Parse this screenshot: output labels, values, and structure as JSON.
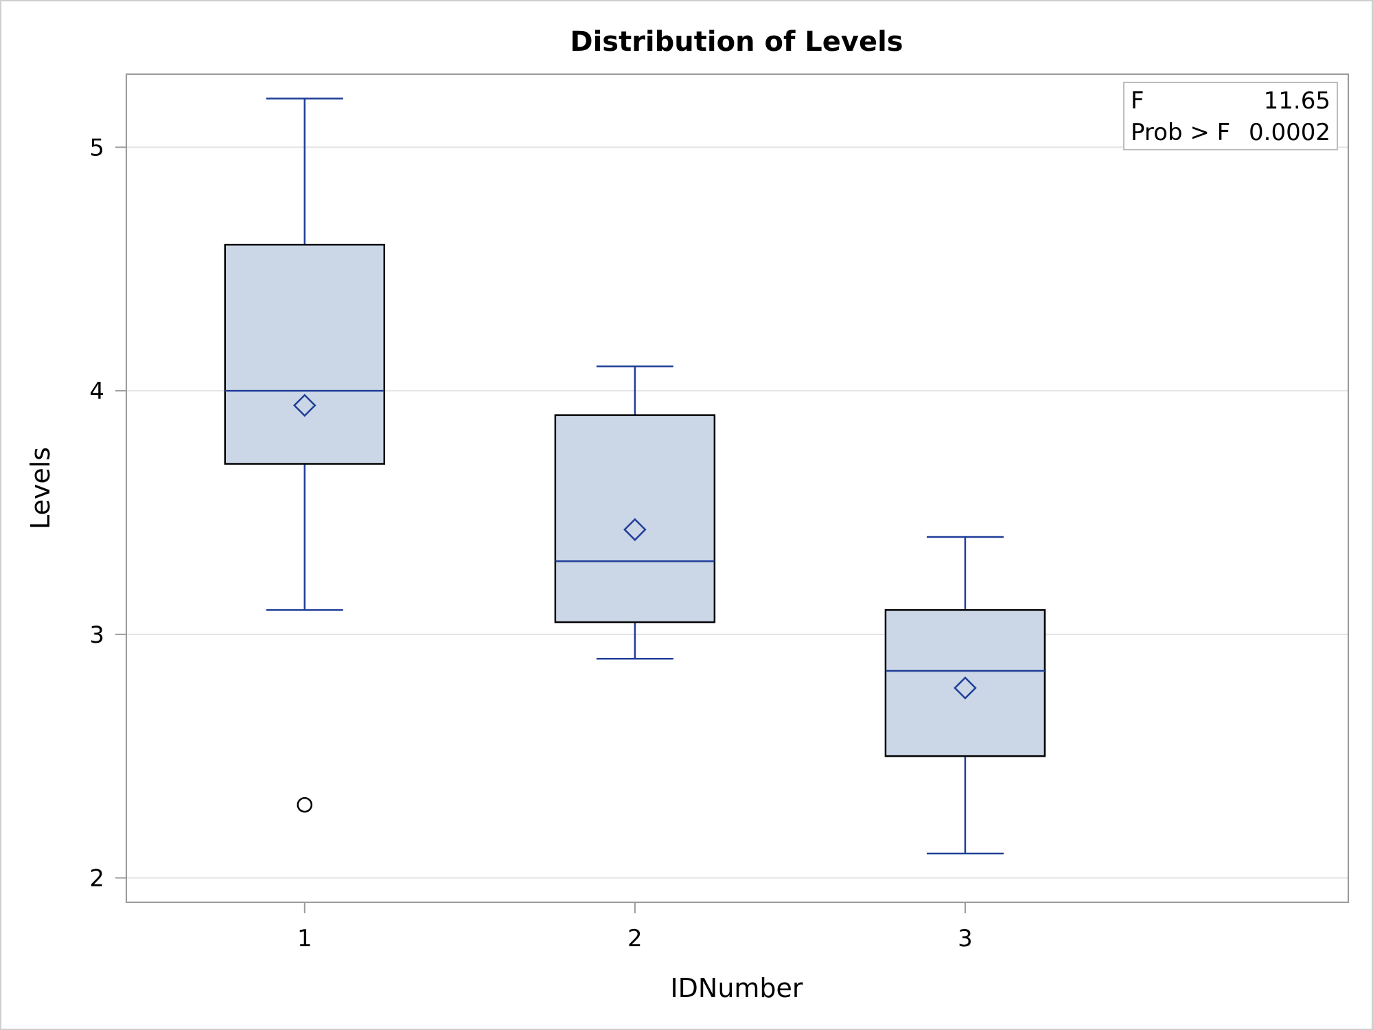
{
  "chart_data": {
    "type": "box",
    "title": "Distribution of Levels",
    "xlabel": "IDNumber",
    "ylabel": "Levels",
    "ylim": [
      1.9,
      5.3
    ],
    "yticks": [
      "2",
      "3",
      "4",
      "5"
    ],
    "grid": "horizontal",
    "categories": [
      "1",
      "2",
      "3"
    ],
    "boxes": [
      {
        "category": "1",
        "whisker_low": 3.1,
        "q1": 3.7,
        "median": 4.0,
        "q3": 4.6,
        "whisker_high": 5.2,
        "mean": 3.94,
        "outliers": [
          2.3
        ]
      },
      {
        "category": "2",
        "whisker_low": 2.9,
        "q1": 3.05,
        "median": 3.3,
        "q3": 3.9,
        "whisker_high": 4.1,
        "mean": 3.43,
        "outliers": []
      },
      {
        "category": "3",
        "whisker_low": 2.1,
        "q1": 2.5,
        "median": 2.85,
        "q3": 3.1,
        "whisker_high": 3.4,
        "mean": 2.78,
        "outliers": []
      }
    ],
    "inset": {
      "placement": "top-right",
      "rows": [
        {
          "label": "F",
          "value": "11.65"
        },
        {
          "label": "Prob > F",
          "value": "0.0002"
        }
      ]
    },
    "colors": {
      "box_fill": "#cbd6e6",
      "box_stroke": "#000000",
      "whisker": "#1f3d99",
      "median": "#1f3d99",
      "mean_marker": "#1f3d99",
      "outlier": "#000000",
      "grid": "#e3e3e3",
      "frame": "#9a9a9a"
    }
  }
}
